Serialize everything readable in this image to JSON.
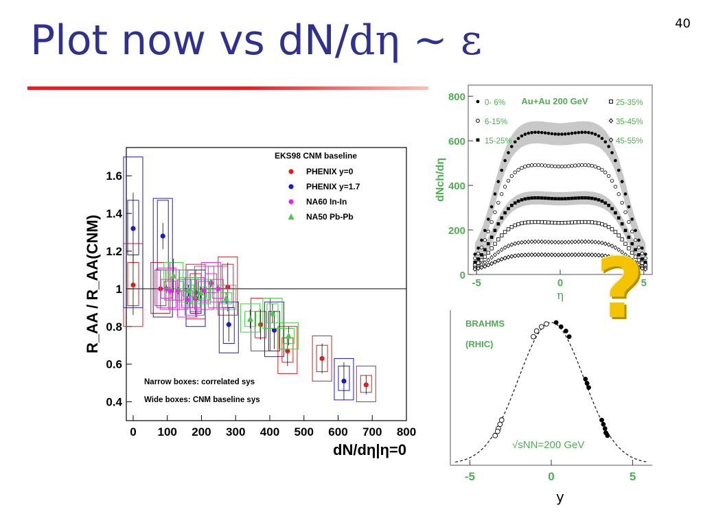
{
  "slide": {
    "title_main": "Plot now vs dN/",
    "title_greek": "dη ~ ε",
    "page_number": "40",
    "question_mark": "?"
  },
  "colors": {
    "title": "#2e3192",
    "rule": "#e51f26",
    "phenix_y0": "#e41a1c",
    "phenix_y17": "#1a1acb",
    "na60": "#ee22ee",
    "na50": "#44cc44",
    "green_text": "#4caf50"
  },
  "chart_data": [
    {
      "type": "scatter",
      "ylabel": "R_AA / R_AA(CNM)",
      "xlabel": "dN/dη|η=0",
      "xlim": [
        -20,
        800
      ],
      "ylim": [
        0.3,
        1.75
      ],
      "xticks": [
        0,
        100,
        200,
        300,
        400,
        500,
        600,
        700,
        800
      ],
      "yticks": [
        0.4,
        0.6,
        0.8,
        1,
        1.2,
        1.4,
        1.6
      ],
      "reference_line": 1,
      "legend_title": "EKS98 CNM baseline",
      "legend_position": "top-right",
      "annotations": [
        "Narrow boxes: correlated sys",
        "Wide boxes: CNM baseline sys"
      ],
      "series": [
        {
          "name": "PHENIX y=0",
          "marker": "circle",
          "color": "#e41a1c",
          "points": [
            {
              "x": 0,
              "y": 1.02,
              "err": 0.16,
              "nlo": 0.91,
              "nhi": 1.14,
              "wlo": 0.8,
              "whi": 1.24
            },
            {
              "x": 80,
              "y": 1.0,
              "err": 0.1,
              "nlo": 0.91,
              "nhi": 1.1,
              "wlo": 0.87,
              "whi": 1.14
            },
            {
              "x": 183,
              "y": 0.98,
              "err": 0.12,
              "nlo": 0.88,
              "nhi": 1.08,
              "wlo": 0.84,
              "whi": 1.13
            },
            {
              "x": 277,
              "y": 1.01,
              "err": 0.13,
              "nlo": 0.9,
              "nhi": 1.13,
              "wlo": 0.86,
              "whi": 1.17
            },
            {
              "x": 373,
              "y": 0.81,
              "err": 0.08,
              "nlo": 0.74,
              "nhi": 0.88,
              "wlo": 0.67,
              "whi": 0.95
            },
            {
              "x": 452,
              "y": 0.67,
              "err": 0.08,
              "nlo": 0.61,
              "nhi": 0.74,
              "wlo": 0.55,
              "whi": 0.8
            },
            {
              "x": 553,
              "y": 0.63,
              "err": 0.08,
              "nlo": 0.56,
              "nhi": 0.7,
              "wlo": 0.51,
              "whi": 0.75
            },
            {
              "x": 682,
              "y": 0.49,
              "err": 0.05,
              "nlo": 0.45,
              "nhi": 0.54,
              "wlo": 0.4,
              "whi": 0.59
            }
          ]
        },
        {
          "name": "PHENIX y=1.7",
          "marker": "circle",
          "color": "#1a1acb",
          "points": [
            {
              "x": 0,
              "y": 1.32,
              "err": 0.19,
              "nlo": 1.18,
              "nhi": 1.47,
              "wlo": 0.9,
              "whi": 1.7
            },
            {
              "x": 87,
              "y": 1.28,
              "err": 0.07,
              "nlo": 1.1,
              "nhi": 1.47,
              "wlo": 0.85,
              "whi": 1.48
            },
            {
              "x": 183,
              "y": 0.95,
              "err": 0.1,
              "nlo": 0.87,
              "nhi": 1.05,
              "wlo": 0.8,
              "whi": 1.1
            },
            {
              "x": 280,
              "y": 0.81,
              "err": 0.09,
              "nlo": 0.71,
              "nhi": 0.9,
              "wlo": 0.66,
              "whi": 0.93
            },
            {
              "x": 413,
              "y": 0.78,
              "err": 0.1,
              "nlo": 0.67,
              "nhi": 0.88,
              "wlo": 0.64,
              "whi": 0.93
            },
            {
              "x": 617,
              "y": 0.51,
              "err": 0.1,
              "nlo": 0.46,
              "nhi": 0.59,
              "wlo": 0.41,
              "whi": 0.63
            }
          ]
        },
        {
          "name": "NA60 In-In",
          "marker": "circle",
          "color": "#ee22ee",
          "points": [
            {
              "x": 97,
              "y": 1.0,
              "err": 0.02,
              "nlo": 0.95,
              "nhi": 1.05,
              "wlo": 0.9,
              "whi": 1.11
            },
            {
              "x": 108,
              "y": 0.99,
              "err": 0.02,
              "nlo": 0.94,
              "nhi": 1.04,
              "wlo": 0.89,
              "whi": 1.1
            },
            {
              "x": 132,
              "y": 0.99,
              "err": 0.02,
              "nlo": 0.94,
              "nhi": 1.04,
              "wlo": 0.89,
              "whi": 1.1
            },
            {
              "x": 158,
              "y": 0.94,
              "err": 0.02,
              "nlo": 0.9,
              "nhi": 0.99,
              "wlo": 0.85,
              "whi": 1.05
            },
            {
              "x": 180,
              "y": 0.95,
              "err": 0.02,
              "nlo": 0.9,
              "nhi": 1.0,
              "wlo": 0.86,
              "whi": 1.06
            },
            {
              "x": 208,
              "y": 0.99,
              "err": 0.02,
              "nlo": 0.94,
              "nhi": 1.04,
              "wlo": 0.89,
              "whi": 1.12
            },
            {
              "x": 228,
              "y": 1.03,
              "err": 0.02,
              "nlo": 0.98,
              "nhi": 1.08,
              "wlo": 0.93,
              "whi": 1.14
            },
            {
              "x": 248,
              "y": 1.0,
              "err": 0.02,
              "nlo": 0.95,
              "nhi": 1.05,
              "wlo": 0.9,
              "whi": 1.12
            }
          ]
        },
        {
          "name": "NA50 Pb-Pb",
          "marker": "triangle",
          "color": "#44cc44",
          "points": [
            {
              "x": 118,
              "y": 1.07,
              "err": 0.09,
              "nlo": 1.04,
              "nhi": 1.1,
              "wlo": 1.0,
              "whi": 1.14
            },
            {
              "x": 162,
              "y": 0.99,
              "err": 0.03,
              "nlo": 0.96,
              "nhi": 1.02,
              "wlo": 0.93,
              "whi": 1.06
            },
            {
              "x": 198,
              "y": 0.98,
              "err": 0.03,
              "nlo": 0.95,
              "nhi": 1.01,
              "wlo": 0.92,
              "whi": 1.05
            },
            {
              "x": 272,
              "y": 0.95,
              "err": 0.03,
              "nlo": 0.92,
              "nhi": 0.98,
              "wlo": 0.89,
              "whi": 1.02
            },
            {
              "x": 343,
              "y": 0.84,
              "err": 0.05,
              "nlo": 0.8,
              "nhi": 0.88,
              "wlo": 0.77,
              "whi": 0.92
            },
            {
              "x": 408,
              "y": 0.87,
              "err": 0.05,
              "nlo": 0.82,
              "nhi": 0.92,
              "wlo": 0.79,
              "whi": 0.95
            },
            {
              "x": 455,
              "y": 0.75,
              "err": 0.05,
              "nlo": 0.71,
              "nhi": 0.79,
              "wlo": 0.68,
              "whi": 0.82
            }
          ]
        }
      ]
    },
    {
      "type": "scatter",
      "title": "Au+Au 200 GeV",
      "ylabel": "dNch/dη",
      "xlabel": "η",
      "xlim": [
        -5.5,
        5.5
      ],
      "ylim": [
        0,
        850
      ],
      "xticks": [
        -5,
        0,
        5
      ],
      "yticks": [
        0,
        200,
        400,
        600,
        800
      ],
      "legend_position": "top-left and top-right",
      "series": [
        {
          "name": "0- 6%",
          "marker": "filled-circle",
          "plateau": 650,
          "dip": 630,
          "band": 50
        },
        {
          "name": "6-15%",
          "marker": "open-circle",
          "plateau": 500,
          "dip": 485,
          "band": 0
        },
        {
          "name": "15-25%",
          "marker": "filled-square",
          "plateau": 350,
          "dip": 340,
          "band": 30
        },
        {
          "name": "25-35%",
          "marker": "open-square",
          "plateau": 240,
          "dip": 232,
          "band": 0
        },
        {
          "name": "35-45%",
          "marker": "open-diamond",
          "plateau": 150,
          "dip": 145,
          "band": 0
        },
        {
          "name": "45-55%",
          "marker": "open-diamond-cross",
          "plateau": 90,
          "dip": 88,
          "band": 0
        }
      ]
    },
    {
      "type": "scatter",
      "xlabel": "y",
      "xlim": [
        -6.2,
        6.2
      ],
      "xticks": [
        -5,
        0,
        5
      ],
      "annotations": [
        "BRAHMS",
        "(RHIC)",
        "√sNN=200 GeV"
      ],
      "curve": "gaussian",
      "series": [
        {
          "name": "filled",
          "marker": "filled-circle",
          "points": [
            [
              0.3,
              1.0
            ],
            [
              0.6,
              0.97
            ],
            [
              0.9,
              0.94
            ],
            [
              1.1,
              0.9
            ],
            [
              2.1,
              0.6
            ],
            [
              2.2,
              0.57
            ],
            [
              2.3,
              0.54
            ],
            [
              3.1,
              0.31
            ],
            [
              3.2,
              0.28
            ],
            [
              3.3,
              0.25
            ],
            [
              3.35,
              0.22
            ],
            [
              3.45,
              0.2
            ]
          ]
        },
        {
          "name": "open",
          "marker": "open-circle",
          "points": [
            [
              -0.3,
              0.99
            ],
            [
              -0.6,
              0.97
            ],
            [
              -0.9,
              0.94
            ],
            [
              -1.1,
              0.9
            ],
            [
              -3.05,
              0.31
            ],
            [
              -3.15,
              0.28
            ],
            [
              -3.25,
              0.25
            ],
            [
              -3.3,
              0.23
            ],
            [
              -3.45,
              0.2
            ]
          ]
        }
      ]
    }
  ]
}
